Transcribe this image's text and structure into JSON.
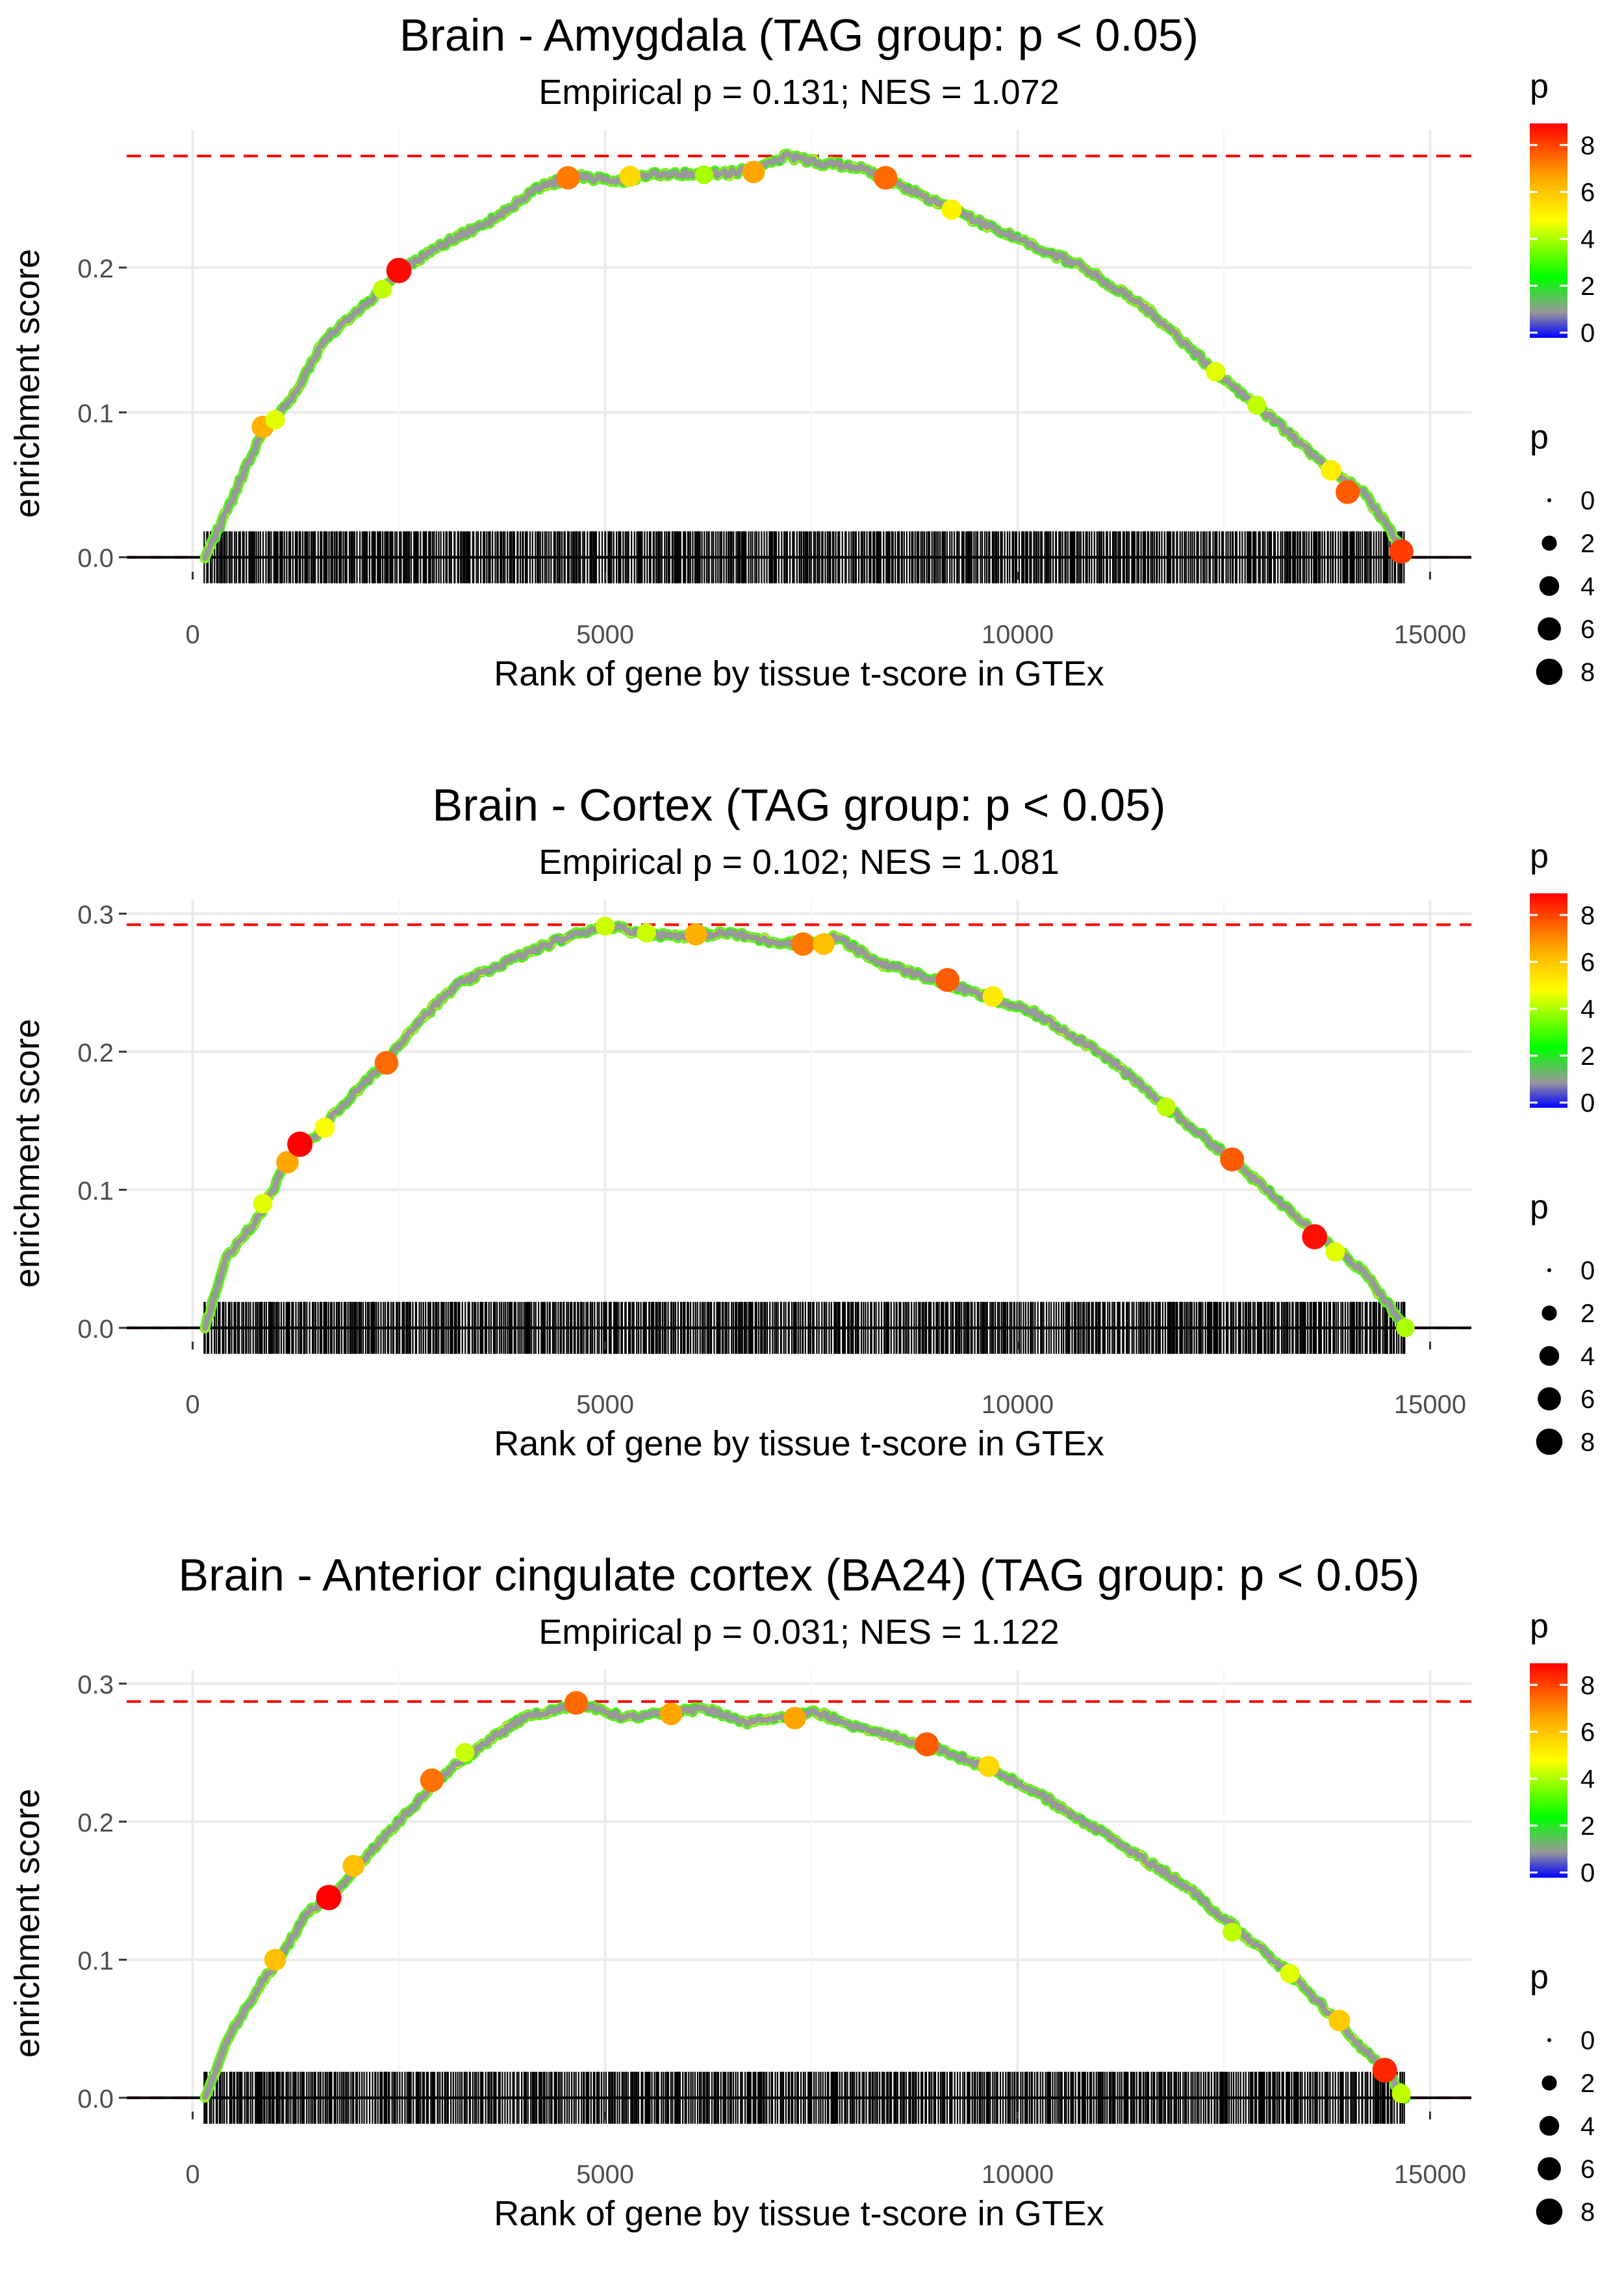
{
  "colors": {
    "grid": "#ebebeb",
    "max_line": "#ff0000",
    "zero_line": "#000000",
    "curve": "#999999",
    "barcode": "#000000",
    "scale": [
      "#0000ff",
      "#999999",
      "#00ff00",
      "#ffff00",
      "#ff0000"
    ]
  },
  "legend": {
    "color_title": "p",
    "color_ticks": [
      "0",
      "2",
      "4",
      "6",
      "8"
    ],
    "size_title": "p",
    "size_ticks": [
      "0",
      "2",
      "4",
      "6",
      "8"
    ]
  },
  "chart_data": [
    {
      "type": "line",
      "title": "Brain - Amygdala (TAG group: p < 0.05)",
      "subtitle": "Empirical p = 0.131; NES = 1.072",
      "xlabel": "Rank of gene by tissue t-score in GTEx",
      "ylabel": "enrichment score",
      "xlim": [
        -800,
        15500
      ],
      "ylim": [
        -0.01,
        0.295
      ],
      "xticks": [
        0,
        5000,
        10000,
        15000
      ],
      "yticks": [
        0.0,
        0.1,
        0.2
      ],
      "ytick_labels": [
        "0.0",
        "0.1",
        "0.2"
      ],
      "max_es": 0.277,
      "n_genes": 14700,
      "curve": {
        "x": [
          150,
          400,
          850,
          1200,
          1600,
          2100,
          2500,
          3000,
          3600,
          4200,
          4600,
          5200,
          5600,
          6000,
          6500,
          7000,
          7200,
          7600,
          8000,
          8400,
          9200,
          10000,
          10800,
          11600,
          12400,
          13200,
          13800,
          14200,
          14500,
          14700
        ],
        "y": [
          0.0,
          0.03,
          0.088,
          0.11,
          0.15,
          0.175,
          0.198,
          0.215,
          0.232,
          0.255,
          0.263,
          0.26,
          0.265,
          0.265,
          0.265,
          0.271,
          0.277,
          0.272,
          0.27,
          0.262,
          0.24,
          0.22,
          0.2,
          0.17,
          0.128,
          0.09,
          0.06,
          0.044,
          0.02,
          0.0
        ]
      },
      "points": [
        {
          "x": 850,
          "y": 0.09,
          "p": 6.3
        },
        {
          "x": 1000,
          "y": 0.095,
          "p": 4.5
        },
        {
          "x": 2500,
          "y": 0.198,
          "p": 8.6
        },
        {
          "x": 2300,
          "y": 0.185,
          "p": 4.2
        },
        {
          "x": 4550,
          "y": 0.262,
          "p": 7.1
        },
        {
          "x": 5300,
          "y": 0.263,
          "p": 5.5
        },
        {
          "x": 6200,
          "y": 0.264,
          "p": 4.0
        },
        {
          "x": 6800,
          "y": 0.266,
          "p": 6.5
        },
        {
          "x": 8400,
          "y": 0.262,
          "p": 7.3
        },
        {
          "x": 9200,
          "y": 0.24,
          "p": 5.0
        },
        {
          "x": 12400,
          "y": 0.128,
          "p": 4.5
        },
        {
          "x": 12900,
          "y": 0.105,
          "p": 4.2
        },
        {
          "x": 13800,
          "y": 0.06,
          "p": 5.1
        },
        {
          "x": 14000,
          "y": 0.045,
          "p": 7.5
        },
        {
          "x": 14650,
          "y": 0.004,
          "p": 7.9
        }
      ]
    },
    {
      "type": "line",
      "title": "Brain - Cortex (TAG group: p < 0.05)",
      "subtitle": "Empirical p = 0.102; NES = 1.081",
      "xlabel": "Rank of gene by tissue t-score in GTEx",
      "ylabel": "enrichment score",
      "xlim": [
        -800,
        15500
      ],
      "ylim": [
        -0.01,
        0.31
      ],
      "xticks": [
        0,
        5000,
        10000,
        15000
      ],
      "yticks": [
        0.0,
        0.1,
        0.2,
        0.3
      ],
      "ytick_labels": [
        "0.0",
        "0.1",
        "0.2",
        "0.3"
      ],
      "max_es": 0.292,
      "n_genes": 14700,
      "curve": {
        "x": [
          150,
          400,
          800,
          1100,
          1300,
          1500,
          1800,
          2300,
          2700,
          3200,
          3800,
          4400,
          5000,
          5500,
          6000,
          6500,
          7000,
          7500,
          7800,
          8300,
          9000,
          9600,
          10200,
          11000,
          11800,
          12600,
          13200,
          13700,
          14200,
          14700
        ],
        "y": [
          0.0,
          0.05,
          0.08,
          0.115,
          0.132,
          0.14,
          0.16,
          0.19,
          0.22,
          0.248,
          0.265,
          0.28,
          0.292,
          0.285,
          0.284,
          0.286,
          0.28,
          0.278,
          0.283,
          0.265,
          0.252,
          0.24,
          0.228,
          0.2,
          0.16,
          0.122,
          0.09,
          0.066,
          0.04,
          0.0
        ]
      },
      "points": [
        {
          "x": 850,
          "y": 0.09,
          "p": 4.5
        },
        {
          "x": 1150,
          "y": 0.12,
          "p": 6.5
        },
        {
          "x": 1300,
          "y": 0.133,
          "p": 8.7
        },
        {
          "x": 1600,
          "y": 0.145,
          "p": 4.8
        },
        {
          "x": 2350,
          "y": 0.192,
          "p": 7.3
        },
        {
          "x": 5000,
          "y": 0.291,
          "p": 4.3
        },
        {
          "x": 5500,
          "y": 0.286,
          "p": 4.3
        },
        {
          "x": 6100,
          "y": 0.285,
          "p": 6.3
        },
        {
          "x": 7400,
          "y": 0.278,
          "p": 7.1
        },
        {
          "x": 7650,
          "y": 0.278,
          "p": 6.0
        },
        {
          "x": 9150,
          "y": 0.252,
          "p": 7.5
        },
        {
          "x": 9700,
          "y": 0.24,
          "p": 5.2
        },
        {
          "x": 11800,
          "y": 0.16,
          "p": 4.2
        },
        {
          "x": 12600,
          "y": 0.122,
          "p": 7.5
        },
        {
          "x": 13600,
          "y": 0.066,
          "p": 8.5
        },
        {
          "x": 13850,
          "y": 0.055,
          "p": 4.5
        },
        {
          "x": 14700,
          "y": 0.0,
          "p": 4.0
        }
      ]
    },
    {
      "type": "line",
      "title": "Brain - Anterior cingulate cortex (BA24) (TAG group: p < 0.05)",
      "subtitle": "Empirical p = 0.031; NES = 1.122",
      "xlabel": "Rank of gene by tissue t-score in GTEx",
      "ylabel": "enrichment score",
      "xlim": [
        -800,
        15500
      ],
      "ylim": [
        -0.01,
        0.31
      ],
      "xticks": [
        0,
        5000,
        10000,
        15000
      ],
      "yticks": [
        0.0,
        0.1,
        0.2,
        0.3
      ],
      "ytick_labels": [
        "0.0",
        "0.1",
        "0.2",
        "0.3"
      ],
      "max_es": 0.287,
      "n_genes": 14700,
      "curve": {
        "x": [
          150,
          400,
          800,
          1100,
          1400,
          1700,
          2100,
          2500,
          3000,
          3500,
          4000,
          4700,
          5200,
          5800,
          6200,
          6700,
          7200,
          7500,
          8100,
          8900,
          9600,
          10400,
          11200,
          12000,
          12700,
          13300,
          13800,
          14200,
          14500,
          14700
        ],
        "y": [
          0.0,
          0.04,
          0.08,
          0.105,
          0.135,
          0.148,
          0.175,
          0.2,
          0.232,
          0.255,
          0.275,
          0.286,
          0.276,
          0.278,
          0.283,
          0.272,
          0.275,
          0.28,
          0.268,
          0.255,
          0.24,
          0.215,
          0.185,
          0.155,
          0.12,
          0.09,
          0.06,
          0.035,
          0.017,
          0.0
        ]
      },
      "points": [
        {
          "x": 1000,
          "y": 0.1,
          "p": 6.0
        },
        {
          "x": 1650,
          "y": 0.145,
          "p": 8.7
        },
        {
          "x": 1950,
          "y": 0.168,
          "p": 6.0
        },
        {
          "x": 2900,
          "y": 0.23,
          "p": 7.2
        },
        {
          "x": 3300,
          "y": 0.25,
          "p": 4.3
        },
        {
          "x": 4650,
          "y": 0.286,
          "p": 7.3
        },
        {
          "x": 5800,
          "y": 0.278,
          "p": 6.5
        },
        {
          "x": 7300,
          "y": 0.275,
          "p": 6.5
        },
        {
          "x": 8900,
          "y": 0.256,
          "p": 7.5
        },
        {
          "x": 9650,
          "y": 0.24,
          "p": 5.5
        },
        {
          "x": 12600,
          "y": 0.12,
          "p": 4.2
        },
        {
          "x": 13300,
          "y": 0.09,
          "p": 4.5
        },
        {
          "x": 13900,
          "y": 0.056,
          "p": 5.8
        },
        {
          "x": 14450,
          "y": 0.02,
          "p": 8.2
        },
        {
          "x": 14650,
          "y": 0.003,
          "p": 4.2
        }
      ]
    }
  ]
}
